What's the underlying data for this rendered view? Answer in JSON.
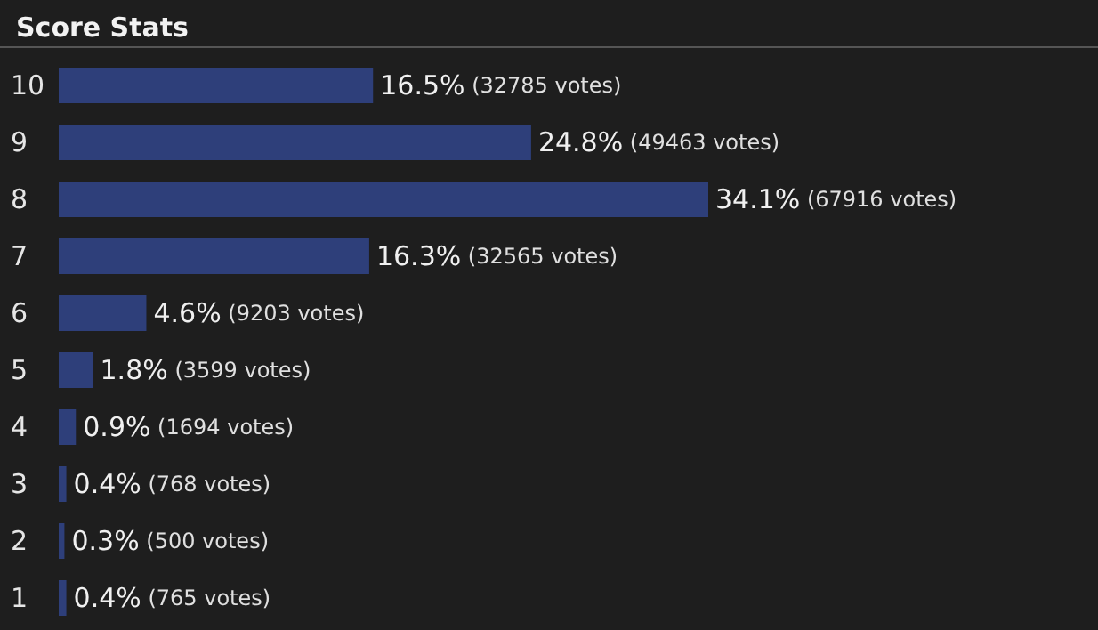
{
  "chart_data": {
    "type": "bar",
    "orientation": "horizontal",
    "title": "Score Stats",
    "categories": [
      "10",
      "9",
      "8",
      "7",
      "6",
      "5",
      "4",
      "3",
      "2",
      "1"
    ],
    "values": [
      16.5,
      24.8,
      34.1,
      16.3,
      4.6,
      1.8,
      0.9,
      0.4,
      0.3,
      0.4
    ],
    "color": "#2e3f7a",
    "value_labels": [
      "16.5% (32785 votes)",
      "24.8% (49463 votes)",
      "34.1% (67916 votes)",
      "16.3% (32565 votes)",
      "4.6% (9203 votes)",
      "1.8% (3599 votes)",
      "0.9% (1694 votes)",
      "0.4% (768 votes)",
      "0.3% (500 votes)",
      "0.4% (765 votes)"
    ]
  }
}
